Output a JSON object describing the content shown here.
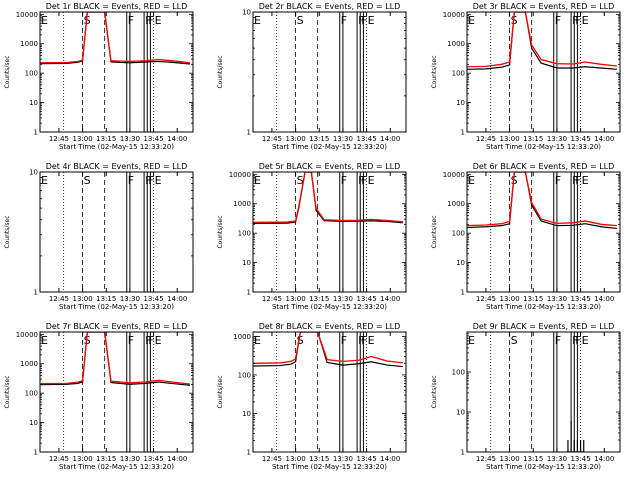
{
  "style": {
    "events_color": "#000000",
    "lld_color": "#ff0000",
    "background": "#ffffff"
  },
  "common": {
    "xlabel": "Start Time (02-May-15 12:33:20)",
    "ylabel": "Counts/sec",
    "x_ticks": [
      "12:45",
      "13:00",
      "13:15",
      "13:30",
      "13:45",
      "14:00"
    ],
    "x_tick_minutes": [
      45,
      60,
      75,
      90,
      105,
      120
    ],
    "xlim_minutes": [
      33,
      130
    ],
    "x_unit_note": "minutes after 12:00"
  },
  "markers": [
    {
      "label": "E",
      "minute": 33,
      "style": "none"
    },
    {
      "label": "",
      "minute": 48,
      "style": "dotted"
    },
    {
      "label": "S",
      "minute": 60,
      "style": "dashed"
    },
    {
      "label": "",
      "minute": 74,
      "style": "dashed"
    },
    {
      "label": "F",
      "minute": 88,
      "style": "solid"
    },
    {
      "label": "",
      "minute": 90,
      "style": "solid"
    },
    {
      "label": "F",
      "minute": 99,
      "style": "solid"
    },
    {
      "label": "F",
      "minute": 101,
      "style": "solid"
    },
    {
      "label": "",
      "minute": 103,
      "style": "solid"
    },
    {
      "label": "E",
      "minute": 105,
      "style": "dotted"
    }
  ],
  "chart_data": [
    {
      "type": "line",
      "title": "Det 1r BLACK = Events, RED = LLD",
      "yscale": "log",
      "ylim": [
        1,
        12000
      ],
      "y_ticks": [
        1,
        10,
        100,
        1000,
        10000
      ],
      "y_tick_labels": [
        "1",
        "10",
        "100",
        "1000",
        "10000"
      ],
      "series": [
        {
          "name": "Events",
          "color": "#000000",
          "x": [
            33,
            50,
            57,
            60,
            63,
            70,
            74,
            78,
            90,
            100,
            108,
            118,
            128
          ],
          "y": [
            210,
            215,
            235,
            260,
            12000,
            12000,
            12000,
            240,
            225,
            240,
            250,
            230,
            205
          ]
        },
        {
          "name": "LLD",
          "color": "#ff0000",
          "x": [
            33,
            50,
            57,
            60,
            63,
            70,
            74,
            78,
            90,
            100,
            108,
            118,
            128
          ],
          "y": [
            225,
            230,
            250,
            280,
            12000,
            12000,
            12000,
            265,
            250,
            265,
            290,
            260,
            225
          ]
        }
      ]
    },
    {
      "type": "line",
      "title": "Det 2r BLACK = Events, RED = LLD",
      "yscale": "log",
      "ylim": [
        1,
        10
      ],
      "y_ticks": [
        1,
        10
      ],
      "y_tick_labels": [
        "1",
        "10"
      ],
      "series": []
    },
    {
      "type": "line",
      "title": "Det 3r BLACK = Events, RED = LLD",
      "yscale": "log",
      "ylim": [
        1,
        12000
      ],
      "y_ticks": [
        1,
        10,
        100,
        1000,
        10000
      ],
      "y_tick_labels": [
        "1",
        "10",
        "100",
        "1000",
        "10000"
      ],
      "series": [
        {
          "name": "Events",
          "color": "#000000",
          "x": [
            33,
            45,
            55,
            60,
            63,
            70,
            74,
            80,
            90,
            100,
            108,
            118,
            128
          ],
          "y": [
            135,
            140,
            160,
            190,
            12000,
            12000,
            700,
            220,
            150,
            150,
            165,
            150,
            135
          ]
        },
        {
          "name": "LLD",
          "color": "#ff0000",
          "x": [
            33,
            45,
            55,
            60,
            63,
            70,
            74,
            80,
            90,
            100,
            108,
            118,
            128
          ],
          "y": [
            165,
            170,
            200,
            240,
            12000,
            12000,
            900,
            290,
            210,
            205,
            240,
            200,
            175
          ]
        }
      ]
    },
    {
      "type": "line",
      "title": "Det 4r BLACK = Events, RED = LLD",
      "yscale": "log",
      "ylim": [
        1,
        10
      ],
      "y_ticks": [
        1,
        10
      ],
      "y_tick_labels": [
        "1",
        "10"
      ],
      "series": []
    },
    {
      "type": "line",
      "title": "Det 5r BLACK = Events, RED = LLD",
      "yscale": "log",
      "ylim": [
        1,
        12000
      ],
      "y_ticks": [
        1,
        10,
        100,
        1000,
        10000
      ],
      "y_tick_labels": [
        "1",
        "10",
        "100",
        "1000",
        "10000"
      ],
      "series": [
        {
          "name": "Events",
          "color": "#000000",
          "x": [
            33,
            55,
            60,
            62,
            66,
            70,
            73,
            78,
            90,
            100,
            108,
            118,
            128
          ],
          "y": [
            215,
            220,
            240,
            700,
            12000,
            12000,
            600,
            265,
            250,
            255,
            265,
            250,
            225
          ]
        },
        {
          "name": "LLD",
          "color": "#ff0000",
          "x": [
            33,
            55,
            60,
            62,
            66,
            70,
            73,
            78,
            90,
            100,
            108,
            118,
            128
          ],
          "y": [
            235,
            240,
            260,
            800,
            12000,
            12000,
            700,
            285,
            270,
            275,
            295,
            270,
            245
          ]
        }
      ]
    },
    {
      "type": "line",
      "title": "Det 6r BLACK = Events, RED = LLD",
      "yscale": "log",
      "ylim": [
        1,
        12000
      ],
      "y_ticks": [
        1,
        10,
        100,
        1000,
        10000
      ],
      "y_tick_labels": [
        "1",
        "10",
        "100",
        "1000",
        "10000"
      ],
      "series": [
        {
          "name": "Events",
          "color": "#000000",
          "x": [
            33,
            45,
            55,
            60,
            63,
            70,
            74,
            80,
            90,
            100,
            108,
            118,
            128
          ],
          "y": [
            155,
            165,
            180,
            210,
            12000,
            12000,
            900,
            260,
            180,
            185,
            210,
            165,
            145
          ]
        },
        {
          "name": "LLD",
          "color": "#ff0000",
          "x": [
            33,
            45,
            55,
            60,
            63,
            70,
            74,
            80,
            90,
            100,
            108,
            118,
            128
          ],
          "y": [
            180,
            190,
            210,
            250,
            12000,
            12000,
            1100,
            300,
            215,
            225,
            260,
            200,
            180
          ]
        }
      ]
    },
    {
      "type": "line",
      "title": "Det 7r BLACK = Events, RED = LLD",
      "yscale": "log",
      "ylim": [
        1,
        12000
      ],
      "y_ticks": [
        1,
        10,
        100,
        1000,
        10000
      ],
      "y_tick_labels": [
        "1",
        "10",
        "100",
        "1000",
        "10000"
      ],
      "series": [
        {
          "name": "Events",
          "color": "#000000",
          "x": [
            33,
            50,
            57,
            60,
            63,
            70,
            74,
            78,
            90,
            100,
            108,
            118,
            128
          ],
          "y": [
            195,
            200,
            215,
            240,
            12000,
            12000,
            12000,
            230,
            200,
            215,
            240,
            210,
            185
          ]
        },
        {
          "name": "LLD",
          "color": "#ff0000",
          "x": [
            33,
            50,
            57,
            60,
            63,
            70,
            74,
            78,
            90,
            100,
            108,
            118,
            128
          ],
          "y": [
            210,
            215,
            235,
            265,
            12000,
            12000,
            12000,
            255,
            225,
            240,
            275,
            235,
            205
          ]
        }
      ]
    },
    {
      "type": "line",
      "title": "Det 8r BLACK = Events, RED = LLD",
      "yscale": "log",
      "ylim": [
        1,
        1300
      ],
      "y_ticks": [
        1,
        10,
        100,
        1000
      ],
      "y_tick_labels": [
        "1",
        "10",
        "100",
        "1000"
      ],
      "series": [
        {
          "name": "Events",
          "color": "#000000",
          "x": [
            33,
            50,
            57,
            60,
            63,
            70,
            74,
            80,
            90,
            100,
            108,
            118,
            128
          ],
          "y": [
            170,
            175,
            190,
            220,
            1300,
            1300,
            1300,
            210,
            180,
            195,
            220,
            180,
            165
          ]
        },
        {
          "name": "LLD",
          "color": "#ff0000",
          "x": [
            33,
            50,
            57,
            60,
            63,
            70,
            74,
            80,
            90,
            100,
            108,
            118,
            128
          ],
          "y": [
            200,
            205,
            225,
            260,
            1300,
            1300,
            1300,
            250,
            225,
            240,
            300,
            230,
            205
          ]
        }
      ]
    },
    {
      "type": "line",
      "title": "Det 9r BLACK = Events, RED = LLD",
      "yscale": "log",
      "ylim": [
        1,
        1000
      ],
      "y_ticks": [
        1,
        10,
        100
      ],
      "y_tick_labels": [
        "1",
        "10",
        "100"
      ],
      "series": [
        {
          "name": "Events",
          "color": "#000000",
          "x": [
            96,
            97,
            98,
            99,
            100,
            101,
            102,
            103,
            104,
            105,
            106,
            107
          ],
          "y": [
            1,
            2,
            1,
            6,
            1,
            2,
            1,
            2,
            1,
            2,
            1,
            2
          ]
        }
      ]
    }
  ]
}
